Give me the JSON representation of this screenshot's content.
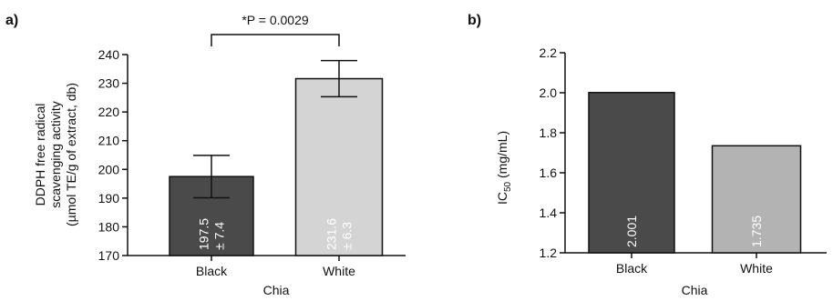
{
  "chart_data": [
    {
      "panel": "a)",
      "type": "bar",
      "categories": [
        "Black",
        "White"
      ],
      "values": [
        197.5,
        231.6
      ],
      "errors": [
        7.4,
        6.3
      ],
      "bar_labels": [
        [
          "197.5",
          "± 7.4"
        ],
        [
          "231.6",
          "± 6.3"
        ]
      ],
      "bar_colors": [
        "#4a4a4a",
        "#d4d4d4"
      ],
      "xlabel": "Chia",
      "ylabel": [
        "DDPH free radical",
        "scavenging activity",
        "(µmol TE/g of extract, db)"
      ],
      "ylim": [
        170,
        240
      ],
      "yticks": [
        "170",
        "180",
        "190",
        "200",
        "210",
        "220",
        "230",
        "240"
      ],
      "annotation": "*P = 0.0029",
      "grid": false
    },
    {
      "panel": "b)",
      "type": "bar",
      "categories": [
        "Black",
        "White"
      ],
      "values": [
        2.001,
        1.735
      ],
      "bar_labels": [
        [
          "2.001"
        ],
        [
          "1.735"
        ]
      ],
      "bar_colors": [
        "#4a4a4a",
        "#b3b3b3"
      ],
      "xlabel": "Chia",
      "ylabel_main": "IC",
      "ylabel_sub": "50",
      "ylabel_unit": " (mg/mL)",
      "ylim": [
        1.2,
        2.2
      ],
      "yticks": [
        "1.2",
        "1.4",
        "1.6",
        "1.8",
        "2.0",
        "2.2"
      ],
      "grid": false
    }
  ]
}
